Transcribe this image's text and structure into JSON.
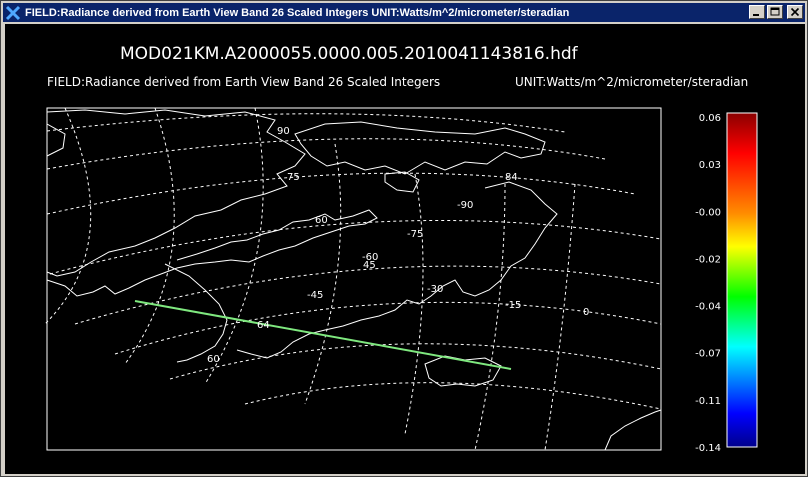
{
  "window": {
    "title": "FIELD:Radiance derived from Earth View Band 26 Scaled Integers  UNIT:Watts/m^2/micrometer/steradian"
  },
  "plot": {
    "filename": "MOD021KM.A2000055.0000.005.2010041143816.hdf",
    "field_label": "FIELD:Radiance derived from Earth View Band 26 Scaled Integers",
    "unit_label": "UNIT:Watts/m^2/micrometer/steradian",
    "lat_labels": [
      "90",
      "75",
      "60",
      "45",
      "60",
      "64",
      "84"
    ],
    "lon_labels": [
      "-90",
      "-75",
      "-60",
      "-45",
      "-30",
      "-15",
      "0"
    ]
  },
  "colorbar": {
    "ticks": [
      "0.06",
      "0.03",
      "-0.00",
      "-0.02",
      "-0.04",
      "-0.07",
      "-0.11",
      "-0.14"
    ],
    "colors": [
      "#8b0000",
      "#ff0000",
      "#ff8c00",
      "#ffff00",
      "#00ff00",
      "#00ffff",
      "#0080ff",
      "#0000ff",
      "#00008b"
    ]
  },
  "swath": {
    "color": "#7fe87f"
  }
}
